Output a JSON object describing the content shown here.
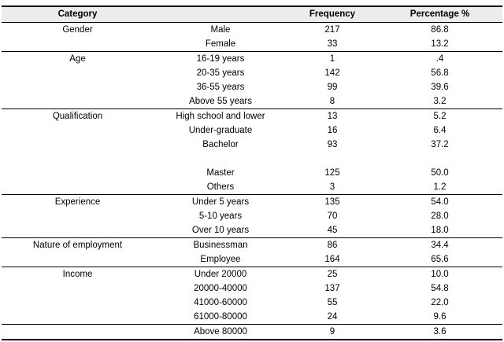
{
  "table": {
    "header": {
      "category": "Category",
      "subcategory": "",
      "frequency": "Frequency",
      "percentage": "Percentage %"
    },
    "colors": {
      "header_bg": "#ececec",
      "border": "#000000",
      "text": "#000000"
    },
    "sections": [
      {
        "category": "Gender",
        "rows": [
          {
            "label": "Male",
            "frequency": "217",
            "percentage": "86.8"
          },
          {
            "label": "Female",
            "frequency": "33",
            "percentage": "13.2"
          }
        ]
      },
      {
        "category": "Age",
        "rows": [
          {
            "label": "16-19 years",
            "frequency": "1",
            "percentage": ".4"
          },
          {
            "label": "20-35 years",
            "frequency": "142",
            "percentage": "56.8"
          },
          {
            "label": "36-55 years",
            "frequency": "99",
            "percentage": "39.6"
          },
          {
            "label": "Above 55 years",
            "frequency": "8",
            "percentage": "3.2"
          }
        ]
      },
      {
        "category": "Qualification",
        "rows": [
          {
            "label": "High school and lower",
            "frequency": "13",
            "percentage": "5.2"
          },
          {
            "label": "Under-graduate",
            "frequency": "16",
            "percentage": "6.4"
          },
          {
            "label": "Bachelor",
            "frequency": "93",
            "percentage": "37.2"
          },
          {
            "label": "",
            "frequency": "",
            "percentage": ""
          },
          {
            "label": "Master",
            "frequency": "125",
            "percentage": "50.0"
          },
          {
            "label": "Others",
            "frequency": "3",
            "percentage": "1.2"
          }
        ]
      },
      {
        "category": "Experience",
        "rows": [
          {
            "label": "Under 5 years",
            "frequency": "135",
            "percentage": "54.0"
          },
          {
            "label": "5-10 years",
            "frequency": "70",
            "percentage": "28.0"
          },
          {
            "label": "Over 10 years",
            "frequency": "45",
            "percentage": "18.0"
          }
        ]
      },
      {
        "category": "Nature of employment",
        "rows": [
          {
            "label": "Businessman",
            "frequency": "86",
            "percentage": "34.4"
          },
          {
            "label": "Employee",
            "frequency": "164",
            "percentage": "65.6"
          }
        ]
      },
      {
        "category": "Income",
        "rows": [
          {
            "label": "Under 20000",
            "frequency": "25",
            "percentage": "10.0"
          },
          {
            "label": "20000-40000",
            "frequency": "137",
            "percentage": "54.8"
          },
          {
            "label": "41000-60000",
            "frequency": "55",
            "percentage": "22.0"
          },
          {
            "label": "61000-80000",
            "frequency": "24",
            "percentage": "9.6"
          }
        ]
      },
      {
        "category": "",
        "rows": [
          {
            "label": "Above 80000",
            "frequency": "9",
            "percentage": "3.6"
          }
        ]
      }
    ]
  }
}
